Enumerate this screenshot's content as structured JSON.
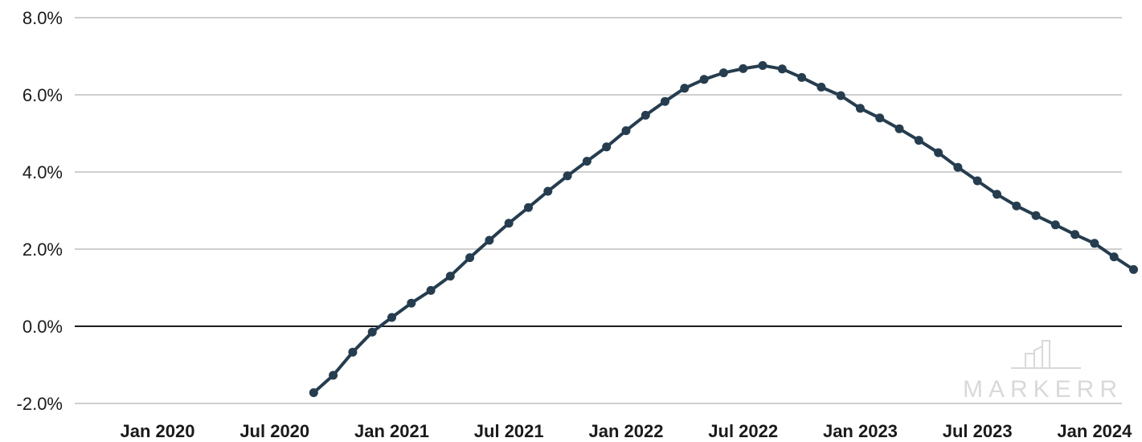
{
  "chart_data": {
    "type": "line",
    "title": "",
    "xlabel": "",
    "ylabel": "",
    "x_start": "2020-01",
    "x_ticks": [
      "Jan 2020",
      "Jul 2020",
      "Jan 2021",
      "Jul 2021",
      "Jan 2022",
      "Jul 2022",
      "Jan 2023",
      "Jul 2023",
      "Jan 2024"
    ],
    "y_ticks": [
      "8.0%",
      "6.0%",
      "4.0%",
      "2.0%",
      "0.0%",
      "-2.0%"
    ],
    "ylim": [
      -2.0,
      8.0
    ],
    "grid": true,
    "series": [
      {
        "color": "#263d4f",
        "x": [
          "2020-09",
          "2020-10",
          "2020-11",
          "2020-12",
          "2021-01",
          "2021-02",
          "2021-03",
          "2021-04",
          "2021-05",
          "2021-06",
          "2021-07",
          "2021-08",
          "2021-09",
          "2021-10",
          "2021-11",
          "2021-12",
          "2022-01",
          "2022-02",
          "2022-03",
          "2022-04",
          "2022-05",
          "2022-06",
          "2022-07",
          "2022-08",
          "2022-09",
          "2022-10",
          "2022-11",
          "2022-12",
          "2023-01",
          "2023-02",
          "2023-03",
          "2023-04",
          "2023-05",
          "2023-06",
          "2023-07",
          "2023-08",
          "2023-09",
          "2023-10",
          "2023-11",
          "2023-12",
          "2024-01",
          "2024-02",
          "2024-03"
        ],
        "values": [
          -1.72,
          -1.27,
          -0.67,
          -0.15,
          0.23,
          0.6,
          0.93,
          1.3,
          1.78,
          2.23,
          2.67,
          3.08,
          3.5,
          3.9,
          4.28,
          4.65,
          5.07,
          5.47,
          5.83,
          6.17,
          6.4,
          6.57,
          6.68,
          6.76,
          6.67,
          6.45,
          6.2,
          5.98,
          5.65,
          5.4,
          5.12,
          4.82,
          4.5,
          4.12,
          3.77,
          3.42,
          3.12,
          2.87,
          2.63,
          2.38,
          2.15,
          1.8,
          1.47
        ]
      }
    ]
  },
  "watermark": {
    "text": "MARKERR"
  }
}
